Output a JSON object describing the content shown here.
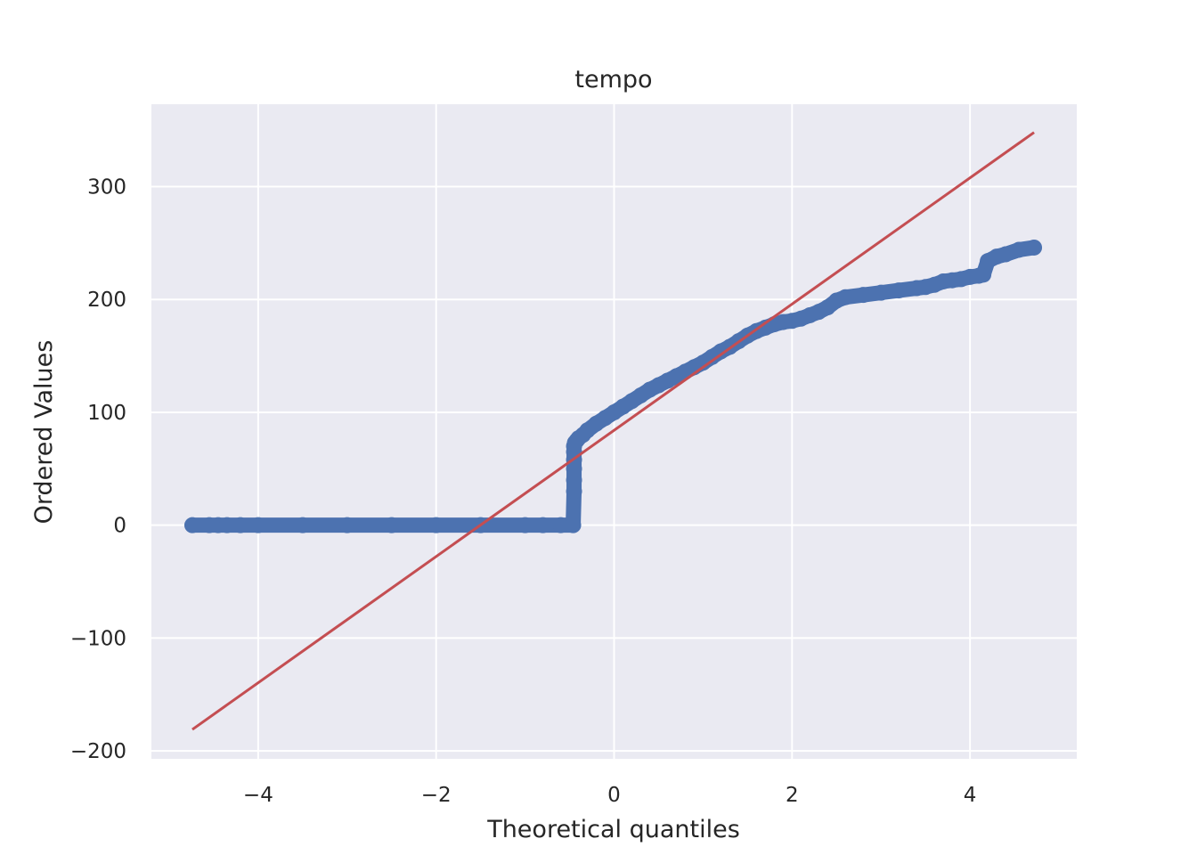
{
  "chart_data": {
    "type": "scatter",
    "title": "tempo",
    "xlabel": "Theoretical quantiles",
    "ylabel": "Ordered Values",
    "xlim": [
      -5.2,
      5.2
    ],
    "ylim": [
      -207,
      373
    ],
    "xticks": [
      -4,
      -2,
      0,
      2,
      4
    ],
    "xtick_labels": [
      "−4",
      "−2",
      "0",
      "2",
      "4"
    ],
    "yticks": [
      -200,
      -100,
      0,
      100,
      200,
      300
    ],
    "ytick_labels": [
      "−200",
      "−100",
      "0",
      "100",
      "200",
      "300"
    ],
    "grid": true,
    "background": "#eaeaf2",
    "series": [
      {
        "kind": "points",
        "color": "#4c72b0",
        "x": [
          -4.74,
          -4.55,
          -4.45,
          -4.35,
          -4.2,
          -4.0,
          -3.5,
          -3.0,
          -2.5,
          -2.0,
          -1.5,
          -1.0,
          -0.8,
          -0.6,
          -0.46,
          -0.45,
          -0.45,
          -0.45,
          -0.45,
          -0.45,
          -0.45,
          -0.44,
          -0.42,
          -0.4,
          -0.35,
          -0.3,
          -0.2,
          -0.1,
          0.0,
          0.1,
          0.2,
          0.3,
          0.4,
          0.5,
          0.6,
          0.7,
          0.8,
          0.9,
          1.0,
          1.1,
          1.2,
          1.3,
          1.4,
          1.5,
          1.6,
          1.7,
          1.8,
          1.9,
          2.0,
          2.1,
          2.2,
          2.3,
          2.4,
          2.5,
          2.6,
          2.8,
          3.0,
          3.2,
          3.4,
          3.5,
          3.6,
          3.7,
          3.8,
          3.9,
          4.0,
          4.1,
          4.15,
          4.2,
          4.3,
          4.4,
          4.55,
          4.72
        ],
        "y": [
          0,
          0,
          0,
          0,
          0,
          0,
          0,
          0,
          0,
          0,
          0,
          0,
          0,
          0,
          0,
          30,
          40,
          50,
          58,
          65,
          70,
          73,
          75,
          77,
          80,
          84,
          90,
          95,
          100,
          105,
          110,
          115,
          120,
          124,
          128,
          132,
          136,
          140,
          144,
          149,
          154,
          158,
          163,
          168,
          172,
          175,
          178,
          180,
          181,
          183,
          186,
          189,
          193,
          199,
          202,
          204,
          206,
          208,
          210,
          211,
          213,
          216,
          217,
          218,
          220,
          221,
          222,
          234,
          238,
          240,
          244,
          246
        ]
      },
      {
        "kind": "line",
        "color": "#c44e52",
        "x": [
          -4.74,
          4.72
        ],
        "y": [
          -181,
          348
        ]
      }
    ]
  }
}
